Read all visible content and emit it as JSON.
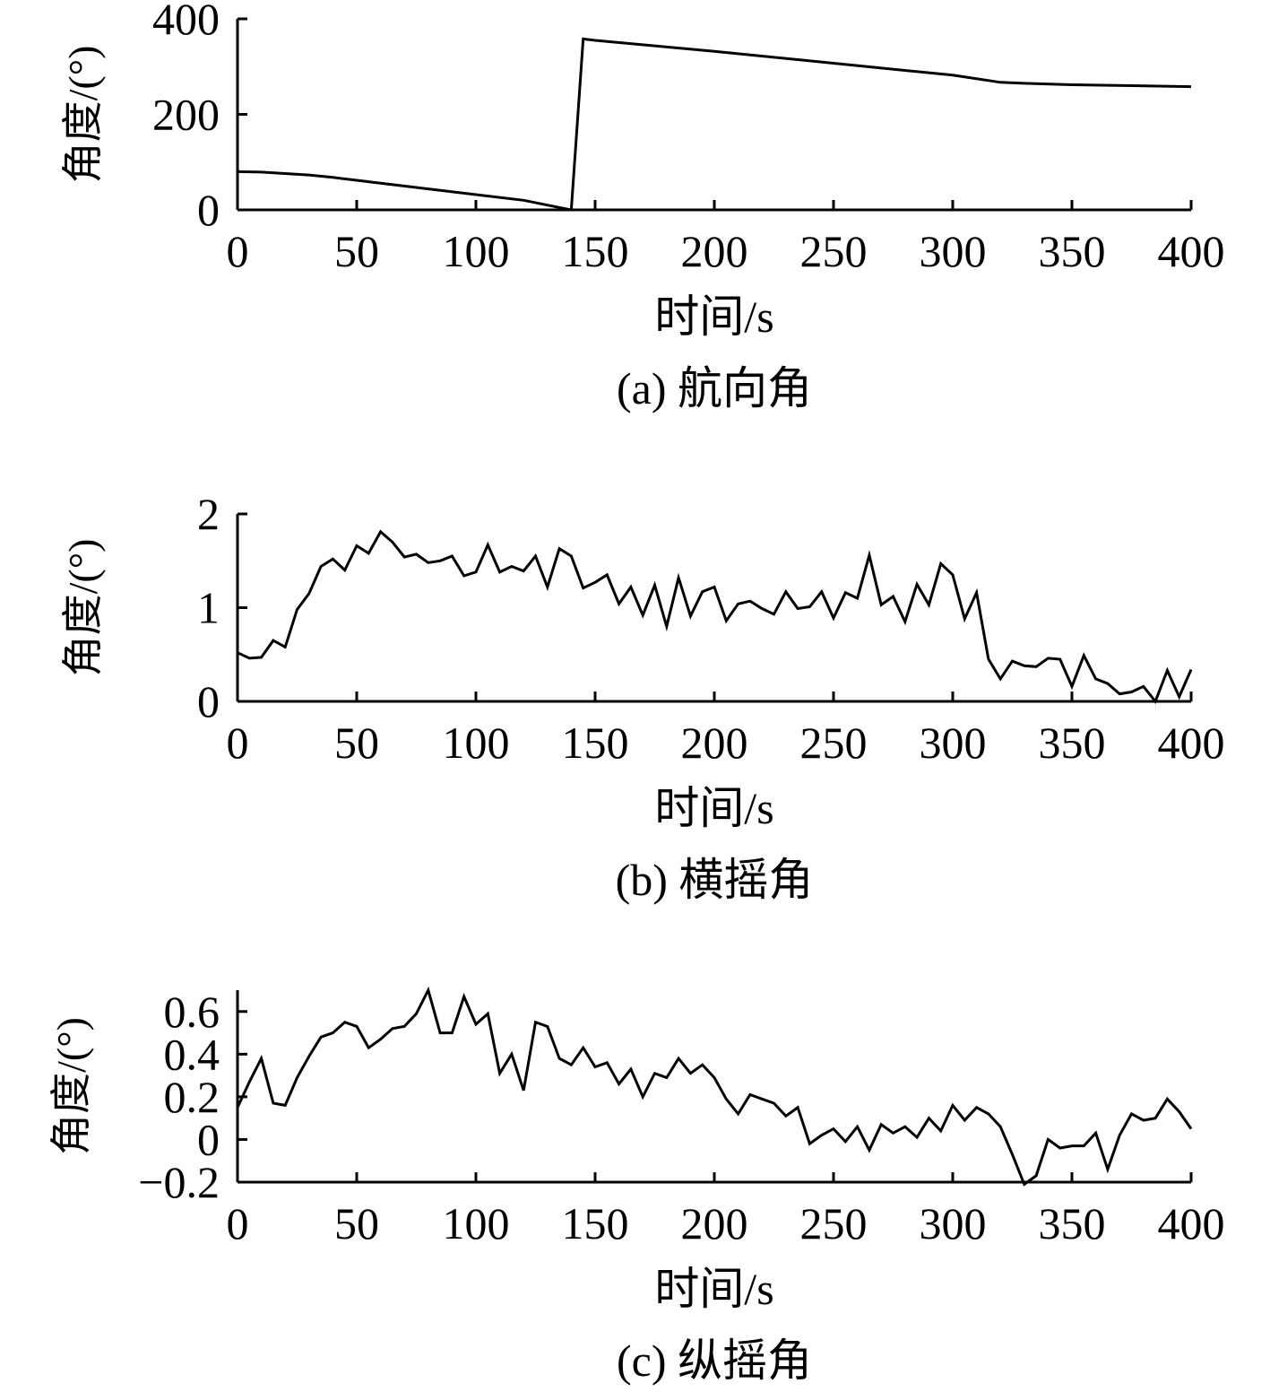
{
  "chart_data": [
    {
      "type": "line",
      "title": "(a) 航向角",
      "xlabel": "时间/s",
      "ylabel": "角度/(°)",
      "xlim": [
        0,
        400
      ],
      "ylim": [
        0,
        400
      ],
      "xticks": [
        "0",
        "50",
        "100",
        "150",
        "200",
        "250",
        "300",
        "350",
        "400"
      ],
      "yticks": [
        "0",
        "200",
        "400"
      ],
      "xtick_values": [
        0,
        50,
        100,
        150,
        200,
        250,
        300,
        350,
        400
      ],
      "ytick_values": [
        0,
        200,
        400
      ],
      "grid": false,
      "x": [
        0,
        10,
        20,
        30,
        40,
        50,
        60,
        80,
        100,
        120,
        140,
        145,
        150,
        200,
        250,
        300,
        320,
        330,
        350,
        400
      ],
      "y": [
        80,
        79,
        76,
        73,
        68,
        62,
        56,
        44,
        32,
        20,
        0,
        358,
        355,
        332,
        307,
        282,
        267,
        265,
        262,
        258
      ]
    },
    {
      "type": "line",
      "title": "(b) 横摇角",
      "xlabel": "时间/s",
      "ylabel": "角度/(°)",
      "xlim": [
        0,
        400
      ],
      "ylim": [
        0,
        2
      ],
      "xticks": [
        "0",
        "50",
        "100",
        "150",
        "200",
        "250",
        "300",
        "350",
        "400"
      ],
      "yticks": [
        "0",
        "1",
        "2"
      ],
      "xtick_values": [
        0,
        50,
        100,
        150,
        200,
        250,
        300,
        350,
        400
      ],
      "ytick_values": [
        0,
        1,
        2
      ],
      "grid": false,
      "x": [
        0,
        5,
        10,
        15,
        20,
        25,
        30,
        35,
        40,
        45,
        50,
        55,
        60,
        65,
        70,
        75,
        80,
        85,
        90,
        95,
        100,
        105,
        110,
        115,
        120,
        125,
        130,
        135,
        140,
        145,
        150,
        155,
        160,
        165,
        170,
        175,
        180,
        185,
        190,
        195,
        200,
        205,
        210,
        215,
        220,
        225,
        230,
        235,
        240,
        245,
        250,
        255,
        260,
        265,
        270,
        275,
        280,
        285,
        290,
        295,
        300,
        305,
        310,
        315,
        320,
        325,
        330,
        335,
        340,
        345,
        350,
        355,
        360,
        365,
        370,
        375,
        380,
        385,
        390,
        395,
        400
      ],
      "y": [
        0.52,
        0.46,
        0.47,
        0.65,
        0.58,
        0.98,
        1.15,
        1.44,
        1.52,
        1.4,
        1.66,
        1.58,
        1.81,
        1.7,
        1.54,
        1.57,
        1.48,
        1.5,
        1.55,
        1.34,
        1.38,
        1.67,
        1.38,
        1.44,
        1.39,
        1.55,
        1.22,
        1.63,
        1.55,
        1.21,
        1.27,
        1.35,
        1.04,
        1.22,
        0.92,
        1.24,
        0.8,
        1.32,
        0.91,
        1.17,
        1.22,
        0.86,
        1.04,
        1.07,
        0.99,
        0.93,
        1.17,
        0.99,
        1.01,
        1.17,
        0.89,
        1.16,
        1.1,
        1.56,
        1.03,
        1.12,
        0.85,
        1.25,
        1.03,
        1.47,
        1.35,
        0.88,
        1.16,
        0.45,
        0.24,
        0.43,
        0.38,
        0.37,
        0.46,
        0.45,
        0.16,
        0.49,
        0.24,
        0.19,
        0.08,
        0.1,
        0.16,
        0.0,
        0.33,
        0.05,
        0.34
      ]
    },
    {
      "type": "line",
      "title": "(c) 纵摇角",
      "xlabel": "时间/s",
      "ylabel": "角度/(°)",
      "xlim": [
        0,
        400
      ],
      "ylim": [
        -0.2,
        0.7
      ],
      "xticks": [
        "0",
        "50",
        "100",
        "150",
        "200",
        "250",
        "300",
        "350",
        "400"
      ],
      "yticks": [
        "−0.2",
        "0",
        "0.2",
        "0.4",
        "0.6"
      ],
      "xtick_values": [
        0,
        50,
        100,
        150,
        200,
        250,
        300,
        350,
        400
      ],
      "ytick_values": [
        -0.2,
        0,
        0.2,
        0.4,
        0.6
      ],
      "grid": false,
      "x": [
        0,
        5,
        10,
        15,
        20,
        25,
        30,
        35,
        40,
        45,
        50,
        55,
        60,
        65,
        70,
        75,
        80,
        85,
        90,
        95,
        100,
        105,
        110,
        115,
        120,
        125,
        130,
        135,
        140,
        145,
        150,
        155,
        160,
        165,
        170,
        175,
        180,
        185,
        190,
        195,
        200,
        205,
        210,
        215,
        220,
        225,
        230,
        235,
        240,
        245,
        250,
        255,
        260,
        265,
        270,
        275,
        280,
        285,
        290,
        295,
        300,
        305,
        310,
        315,
        320,
        325,
        330,
        335,
        340,
        345,
        350,
        355,
        360,
        365,
        370,
        375,
        380,
        385,
        390,
        395,
        400
      ],
      "y": [
        0.15,
        0.27,
        0.38,
        0.17,
        0.16,
        0.29,
        0.39,
        0.48,
        0.5,
        0.55,
        0.53,
        0.43,
        0.47,
        0.52,
        0.53,
        0.59,
        0.7,
        0.5,
        0.5,
        0.67,
        0.54,
        0.59,
        0.31,
        0.4,
        0.23,
        0.55,
        0.53,
        0.38,
        0.35,
        0.43,
        0.34,
        0.36,
        0.26,
        0.33,
        0.2,
        0.31,
        0.29,
        0.38,
        0.31,
        0.35,
        0.29,
        0.19,
        0.12,
        0.21,
        0.19,
        0.17,
        0.11,
        0.15,
        -0.02,
        0.02,
        0.05,
        -0.01,
        0.06,
        -0.05,
        0.07,
        0.03,
        0.06,
        0.01,
        0.1,
        0.04,
        0.16,
        0.09,
        0.15,
        0.12,
        0.06,
        -0.07,
        -0.21,
        -0.17,
        0.0,
        -0.04,
        -0.03,
        -0.03,
        0.03,
        -0.14,
        0.02,
        0.12,
        0.09,
        0.1,
        0.19,
        0.13,
        0.05
      ]
    }
  ]
}
